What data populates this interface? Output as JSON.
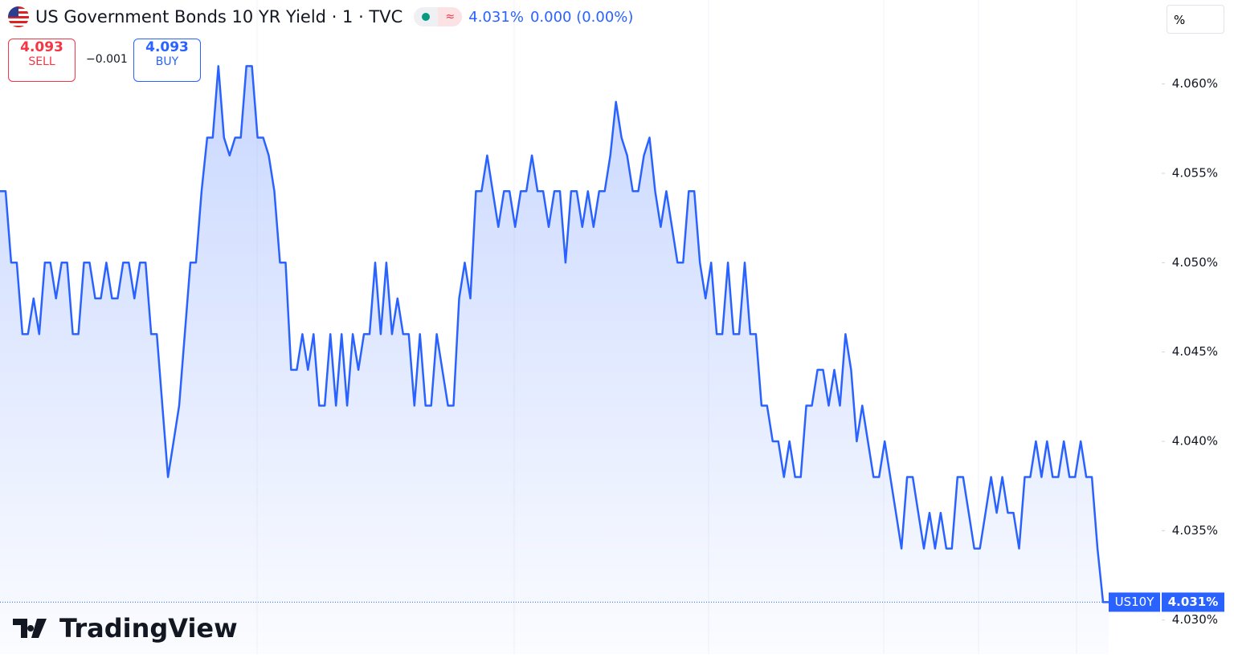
{
  "header": {
    "title": "US Government Bonds 10 YR Yield · 1 · TVC",
    "price": "4.031%",
    "change": "0.000 (0.00%)",
    "sell": {
      "price": "4.093",
      "label": "SELL"
    },
    "spread": "−0.001",
    "buy": {
      "price": "4.093",
      "label": "BUY"
    },
    "scale_mode": "%"
  },
  "branding": "TradingView",
  "chart_data": {
    "type": "area",
    "color": "#2962ff",
    "ylim": [
      4.0281,
      4.0647
    ],
    "yticks": [
      {
        "value": 4.03,
        "label": "4.030%"
      },
      {
        "value": 4.035,
        "label": "4.035%"
      },
      {
        "value": 4.04,
        "label": "4.040%"
      },
      {
        "value": 4.045,
        "label": "4.045%"
      },
      {
        "value": 4.05,
        "label": "4.050%"
      },
      {
        "value": 4.055,
        "label": "4.055%"
      },
      {
        "value": 4.06,
        "label": "4.060%"
      }
    ],
    "price_tag": {
      "symbol": "US10Y",
      "label": "4.031%"
    },
    "values": [
      4.054,
      4.054,
      4.05,
      4.05,
      4.046,
      4.046,
      4.048,
      4.046,
      4.05,
      4.05,
      4.048,
      4.05,
      4.05,
      4.046,
      4.046,
      4.05,
      4.05,
      4.048,
      4.048,
      4.05,
      4.048,
      4.048,
      4.05,
      4.05,
      4.048,
      4.05,
      4.05,
      4.046,
      4.046,
      4.042,
      4.038,
      4.04,
      4.042,
      4.046,
      4.05,
      4.05,
      4.054,
      4.057,
      4.057,
      4.061,
      4.057,
      4.056,
      4.057,
      4.057,
      4.061,
      4.061,
      4.057,
      4.057,
      4.056,
      4.054,
      4.05,
      4.05,
      4.044,
      4.044,
      4.046,
      4.044,
      4.046,
      4.042,
      4.042,
      4.046,
      4.042,
      4.046,
      4.042,
      4.046,
      4.044,
      4.046,
      4.046,
      4.05,
      4.046,
      4.05,
      4.046,
      4.048,
      4.046,
      4.046,
      4.042,
      4.046,
      4.042,
      4.042,
      4.046,
      4.044,
      4.042,
      4.042,
      4.048,
      4.05,
      4.048,
      4.054,
      4.054,
      4.056,
      4.054,
      4.052,
      4.054,
      4.054,
      4.052,
      4.054,
      4.054,
      4.056,
      4.054,
      4.054,
      4.052,
      4.054,
      4.054,
      4.05,
      4.054,
      4.054,
      4.052,
      4.054,
      4.052,
      4.054,
      4.054,
      4.056,
      4.059,
      4.057,
      4.056,
      4.054,
      4.054,
      4.056,
      4.057,
      4.054,
      4.052,
      4.054,
      4.052,
      4.05,
      4.05,
      4.054,
      4.054,
      4.05,
      4.048,
      4.05,
      4.046,
      4.046,
      4.05,
      4.046,
      4.046,
      4.05,
      4.046,
      4.046,
      4.042,
      4.042,
      4.04,
      4.04,
      4.038,
      4.04,
      4.038,
      4.038,
      4.042,
      4.042,
      4.044,
      4.044,
      4.042,
      4.044,
      4.042,
      4.046,
      4.044,
      4.04,
      4.042,
      4.04,
      4.038,
      4.038,
      4.04,
      4.038,
      4.036,
      4.034,
      4.038,
      4.038,
      4.036,
      4.034,
      4.036,
      4.034,
      4.036,
      4.034,
      4.034,
      4.038,
      4.038,
      4.036,
      4.034,
      4.034,
      4.036,
      4.038,
      4.036,
      4.038,
      4.036,
      4.036,
      4.034,
      4.038,
      4.038,
      4.04,
      4.038,
      4.04,
      4.038,
      4.038,
      4.04,
      4.038,
      4.038,
      4.04,
      4.038,
      4.038,
      4.034,
      4.031,
      4.031
    ]
  }
}
